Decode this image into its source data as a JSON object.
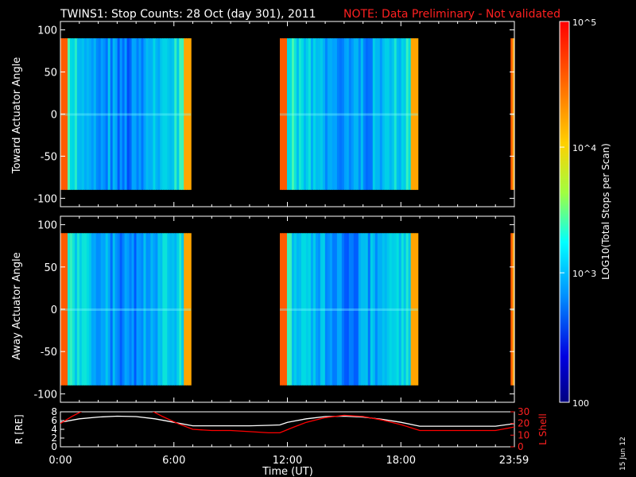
{
  "header": {
    "title": "TWINS1: Stop Counts: 28 Oct (day 301), 2011",
    "note": "NOTE: Data Preliminary - Not validated"
  },
  "colorbar": {
    "label": "LOG10(Total Stops per Scan)",
    "ticks": [
      "10^5",
      "10^4",
      "10^3",
      "100"
    ],
    "colors": [
      "#ff0000",
      "#ff8000",
      "#ffff00",
      "#00ffff",
      "#0000ff",
      "#000080"
    ]
  },
  "footer": {
    "date_stamp": "15 Jun 12"
  },
  "chart_data": [
    {
      "type": "heatmap",
      "panel": "toward",
      "ylabel": "Toward Actuator Angle",
      "yticks": [
        100,
        50,
        0,
        -50,
        -100
      ],
      "ylim": [
        -110,
        110
      ],
      "xlim": [
        0,
        24
      ],
      "data_windows_hours": [
        [
          0.0,
          6.9
        ],
        [
          11.6,
          18.9
        ],
        [
          23.8,
          24.0
        ]
      ],
      "angle_coverage": [
        -90,
        90
      ]
    },
    {
      "type": "heatmap",
      "panel": "away",
      "ylabel": "Away Actuator Angle",
      "yticks": [
        100,
        50,
        0,
        -50,
        -100
      ],
      "ylim": [
        -110,
        110
      ],
      "xlim": [
        0,
        24
      ],
      "data_windows_hours": [
        [
          0.0,
          6.9
        ],
        [
          11.6,
          18.9
        ],
        [
          23.8,
          24.0
        ]
      ],
      "angle_coverage": [
        -90,
        90
      ]
    },
    {
      "type": "line",
      "panel": "orbit",
      "xlabel": "Time (UT)",
      "xticks": [
        "0:00",
        "6:00",
        "12:00",
        "18:00",
        "23:59"
      ],
      "xtick_hours": [
        0,
        6,
        12,
        18,
        23.98
      ],
      "xlim": [
        0,
        24
      ],
      "ylabel_left": "R [RE]",
      "ylim_left": [
        0,
        8
      ],
      "yticks_left": [
        0,
        2,
        4,
        6,
        8
      ],
      "ylabel_right": "L Shell",
      "ylim_right": [
        0,
        30
      ],
      "yticks_right": [
        0,
        10,
        20,
        30
      ],
      "series": [
        {
          "name": "R [RE]",
          "color": "#ffffff",
          "axis": "left",
          "x": [
            0,
            1,
            2,
            3,
            4,
            5,
            6,
            7,
            8,
            9,
            10,
            11,
            11.6,
            12,
            13,
            14,
            15,
            16,
            17,
            18,
            19,
            20,
            21,
            22,
            23,
            24
          ],
          "values": [
            5.6,
            6.4,
            6.8,
            7.0,
            6.9,
            6.4,
            5.6,
            4.8,
            4.8,
            4.8,
            4.8,
            4.9,
            5.0,
            5.6,
            6.4,
            6.9,
            7.0,
            6.8,
            6.3,
            5.6,
            4.7,
            4.7,
            4.7,
            4.7,
            4.7,
            5.3
          ]
        },
        {
          "name": "L Shell",
          "color": "#ff0000",
          "axis": "right",
          "x": [
            0,
            0.6,
            1.2,
            4.8,
            5.4,
            6.2,
            7.0,
            8.0,
            9.0,
            10.0,
            11.0,
            11.6,
            12.2,
            13.0,
            14.0,
            15.0,
            16.0,
            17.0,
            18.0,
            19.0,
            20.0,
            21.0,
            22.0,
            23.0,
            24.0
          ],
          "values": [
            20,
            26,
            31,
            31,
            26,
            20,
            15,
            14,
            14,
            13,
            12,
            12,
            16,
            21,
            25,
            27,
            26,
            23,
            19,
            14,
            14,
            14,
            14,
            14,
            17
          ]
        }
      ]
    }
  ]
}
